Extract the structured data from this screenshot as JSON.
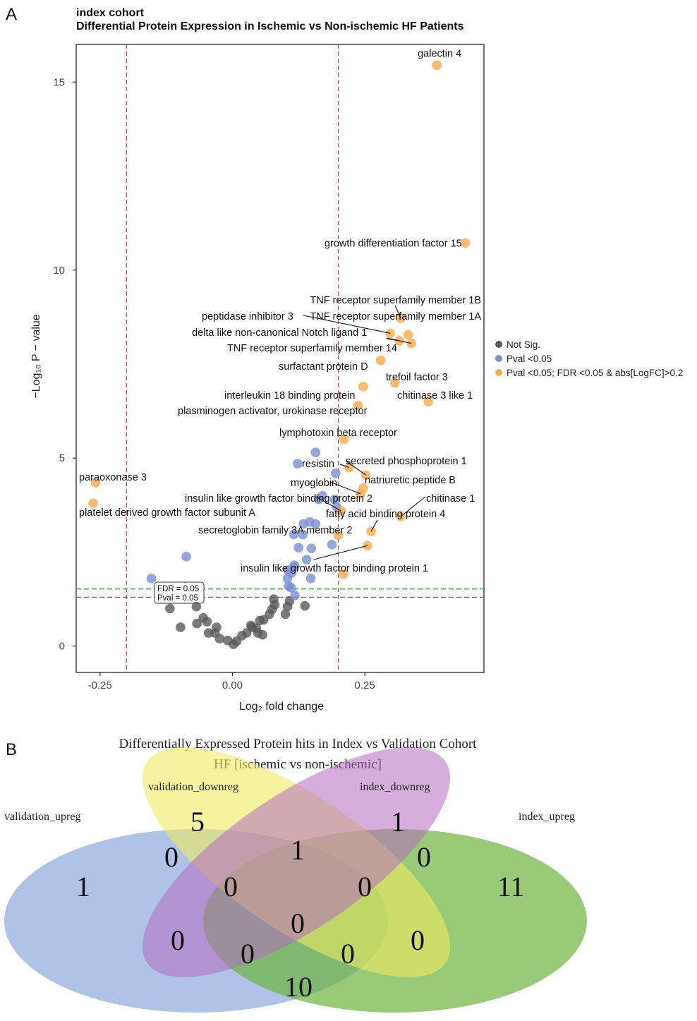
{
  "panel_a": {
    "letter": "A",
    "title_line1": "index cohort",
    "title_line2": "Differential Protein Expression in Ischemic vs Non-ischemic HF Patients",
    "xlabel": "Log₂ fold change",
    "ylabel": "−Log₁₀ P − value",
    "threshold_labels": {
      "fdr": "FDR = 0.05",
      "pval": "Pval = 0.05"
    },
    "legend": {
      "items": [
        {
          "label": "Not Sig.",
          "color": "#5a5a5a"
        },
        {
          "label": "Pval <0.05",
          "color": "#7b90d2"
        },
        {
          "label": "Pval <0.05; FDR <0.05 & abs[LogFC]>0.2",
          "color": "#f6a94a"
        }
      ]
    }
  },
  "chart_data": {
    "type": "scatter",
    "xlim": [
      -0.295,
      0.475
    ],
    "ylim": [
      -0.7,
      16.0
    ],
    "x_ticks": [
      -0.25,
      0.0,
      0.25
    ],
    "x_tick_labels": [
      "-0.25",
      "0.00",
      "0.25"
    ],
    "y_ticks": [
      0,
      5,
      10,
      15
    ],
    "y_tick_labels": [
      "0",
      "5",
      "10",
      "15"
    ],
    "grid": false,
    "legend_position": "right",
    "vlines": [
      -0.2,
      0.2
    ],
    "hline_fdr": 1.52,
    "hline_pval": 1.3,
    "colors": {
      "grey": "#5a5a5a",
      "blue": "#7b90d2",
      "orange": "#f6a94a",
      "fdr_line": "#44b649",
      "pval_line": "#b04a5e",
      "fc_line": "#c0504d"
    },
    "labeled": [
      {
        "name": "galectin 4",
        "x": 0.386,
        "y": 15.45
      },
      {
        "name": "growth differentiation factor 15",
        "x": 0.44,
        "y": 10.72
      },
      {
        "name": "TNF receptor superfamily member 1B",
        "x": 0.318,
        "y": 8.72
      },
      {
        "name": "TNF receptor superfamily member 1A",
        "x": 0.332,
        "y": 8.28
      },
      {
        "name": "peptidase inhibitor 3",
        "x": 0.298,
        "y": 8.32
      },
      {
        "name": "delta like non-canonical Notch ligand 1",
        "x": 0.338,
        "y": 8.05
      },
      {
        "name": "TNF receptor superfamily member 14",
        "x": 0.315,
        "y": 8.12
      },
      {
        "name": "surfactant protein D",
        "x": 0.28,
        "y": 7.6
      },
      {
        "name": "trefoil factor 3",
        "x": 0.307,
        "y": 7.0
      },
      {
        "name": "interleukin 18 binding protein",
        "x": 0.247,
        "y": 6.9
      },
      {
        "name": "chitinase 3 like 1",
        "x": 0.37,
        "y": 6.5
      },
      {
        "name": "plasminogen activator, urokinase receptor",
        "x": 0.237,
        "y": 6.4
      },
      {
        "name": "lymphotoxin beta receptor",
        "x": 0.211,
        "y": 5.5
      },
      {
        "name": "secreted phosphoprotein 1",
        "x": 0.252,
        "y": 4.55
      },
      {
        "name": "resistin",
        "x": 0.22,
        "y": 4.75
      },
      {
        "name": "natriuretic peptide B",
        "x": 0.247,
        "y": 4.2
      },
      {
        "name": "myoglobin",
        "x": 0.242,
        "y": 4.05
      },
      {
        "name": "paraoxonase 3",
        "x": -0.258,
        "y": 4.35
      },
      {
        "name": "insulin like growth factor binding protein 2",
        "x": 0.205,
        "y": 3.6
      },
      {
        "name": "platelet derived growth factor subunit A",
        "x": -0.263,
        "y": 3.8
      },
      {
        "name": "chitinase 1",
        "x": 0.318,
        "y": 3.45
      },
      {
        "name": "fatty acid binding protein 4",
        "x": 0.262,
        "y": 3.05
      },
      {
        "name": "secretoglobin family 3A member 2",
        "x": 0.2,
        "y": 2.95
      },
      {
        "name": "insulin like growth factor binding protein 1",
        "x": 0.255,
        "y": 2.67
      },
      {
        "name": "",
        "x": 0.21,
        "y": 1.92
      }
    ],
    "sig": [
      [
        0.157,
        5.15
      ],
      [
        0.123,
        4.85
      ],
      [
        0.195,
        4.6
      ],
      [
        0.17,
        4.0
      ],
      [
        0.193,
        3.9
      ],
      [
        0.197,
        3.7
      ],
      [
        0.163,
        3.9
      ],
      [
        0.134,
        3.25
      ],
      [
        0.146,
        3.3
      ],
      [
        0.157,
        3.25
      ],
      [
        0.116,
        2.97
      ],
      [
        0.133,
        2.97
      ],
      [
        0.125,
        2.62
      ],
      [
        0.149,
        2.6
      ],
      [
        0.188,
        2.7
      ],
      [
        0.14,
        2.3
      ],
      [
        0.117,
        2.15
      ],
      [
        0.105,
        2.02
      ],
      [
        0.112,
        1.95
      ],
      [
        0.148,
        1.8
      ],
      [
        0.104,
        1.8
      ],
      [
        0.111,
        1.55
      ],
      [
        0.118,
        1.35
      ],
      [
        -0.087,
        2.38
      ],
      [
        -0.153,
        1.8
      ],
      [
        0.106,
        1.6
      ],
      [
        0.117,
        2.1
      ]
    ],
    "nonsig": [
      [
        -0.118,
        1.0
      ],
      [
        -0.098,
        0.5
      ],
      [
        -0.068,
        1.05
      ],
      [
        -0.055,
        0.75
      ],
      [
        -0.067,
        0.6
      ],
      [
        -0.048,
        0.65
      ],
      [
        -0.045,
        0.35
      ],
      [
        -0.033,
        0.35
      ],
      [
        -0.024,
        0.2
      ],
      [
        -0.009,
        0.15
      ],
      [
        0.002,
        0.05
      ],
      [
        0.008,
        0.13
      ],
      [
        0.018,
        0.28
      ],
      [
        0.027,
        0.35
      ],
      [
        0.037,
        0.5
      ],
      [
        0.045,
        0.48
      ],
      [
        0.052,
        0.68
      ],
      [
        0.059,
        0.7
      ],
      [
        0.057,
        0.3
      ],
      [
        0.07,
        0.85
      ],
      [
        0.075,
        0.98
      ],
      [
        0.08,
        1.1
      ],
      [
        0.078,
        1.25
      ],
      [
        0.1,
        0.85
      ],
      [
        0.104,
        1.05
      ],
      [
        0.108,
        1.2
      ],
      [
        0.137,
        1.07
      ],
      [
        0.035,
        0.55
      ],
      [
        0.048,
        0.35
      ],
      [
        -0.03,
        0.5
      ]
    ]
  },
  "panel_b": {
    "letter": "B",
    "title_line1": "Differentially Expressed Protein hits in Index vs Validation Cohort",
    "title_line2": "HF [ischemic vs non-ischemic]",
    "sets": {
      "validation_upreg": {
        "label": "validation_upreg",
        "color": "#8eaadb"
      },
      "validation_downreg": {
        "label": "validation_downreg",
        "color": "#eeea60"
      },
      "index_downreg": {
        "label": "index_downreg",
        "color": "#b46bbf"
      },
      "index_upreg": {
        "label": "index_upreg",
        "color": "#6db33f"
      }
    },
    "regions": {
      "validation_upreg_only": "1",
      "validation_downreg_only": "5",
      "index_downreg_only": "1",
      "index_upreg_only": "11",
      "vu_vd": "0",
      "vd_id": "1",
      "id_iu": "0",
      "vu_vd_id": "0",
      "vd_id_iu": "0",
      "all_four": "0",
      "vu_id": "0",
      "vd_iu": "0",
      "vu_id_iu": "0",
      "vu_vd_iu": "0",
      "vu_iu": "10"
    }
  }
}
